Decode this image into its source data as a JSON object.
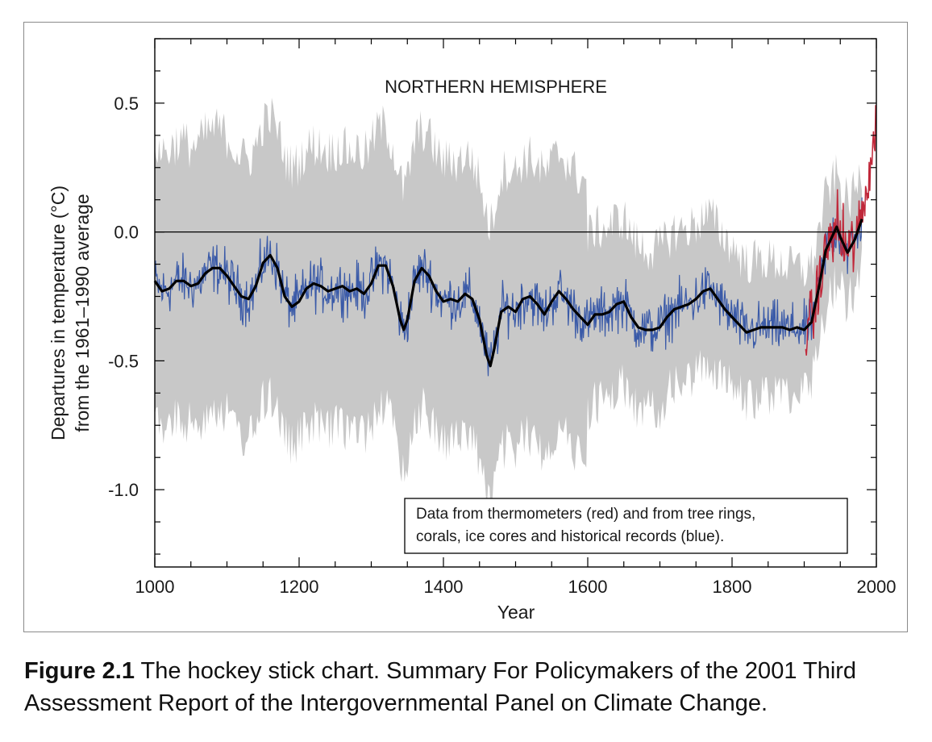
{
  "chart_data": {
    "type": "line",
    "title": "NORTHERN HEMISPHERE",
    "xlabel": "Year",
    "ylabel_line1": "Departures in temperature (°C)",
    "ylabel_line2": "from the 1961–1990 average",
    "xlim": [
      1000,
      2000
    ],
    "ylim": [
      -1.3,
      0.75
    ],
    "x_ticks": [
      1000,
      1200,
      1400,
      1600,
      1800,
      2000
    ],
    "y_ticks": [
      0.5,
      0.0,
      -0.5,
      -1.0
    ],
    "y_tick_labels": [
      "0.5",
      "0.0",
      "-0.5",
      "-1.0"
    ],
    "x_tick_labels": [
      "1000",
      "1200",
      "1400",
      "1600",
      "1800",
      "2000"
    ],
    "zero_line": 0.0,
    "note": [
      "Data from thermometers (red) and from tree rings,",
      "corals, ice cores and historical records (blue)."
    ],
    "colors": {
      "proxy": "#3a5aa8",
      "thermometer": "#c0283a",
      "smoothed": "#000000",
      "uncertainty": "#c8c8c8"
    },
    "series": [
      {
        "name": "smoothed",
        "style": "thick black",
        "x": [
          1000,
          1010,
          1020,
          1030,
          1040,
          1050,
          1060,
          1070,
          1080,
          1090,
          1100,
          1110,
          1120,
          1130,
          1140,
          1150,
          1160,
          1170,
          1180,
          1190,
          1200,
          1210,
          1220,
          1230,
          1240,
          1250,
          1260,
          1270,
          1280,
          1290,
          1300,
          1310,
          1320,
          1330,
          1340,
          1345,
          1350,
          1360,
          1370,
          1380,
          1390,
          1400,
          1410,
          1420,
          1430,
          1440,
          1450,
          1460,
          1465,
          1470,
          1480,
          1490,
          1500,
          1510,
          1520,
          1530,
          1540,
          1550,
          1560,
          1570,
          1580,
          1590,
          1600,
          1610,
          1620,
          1630,
          1640,
          1650,
          1660,
          1670,
          1680,
          1690,
          1700,
          1710,
          1720,
          1730,
          1740,
          1750,
          1760,
          1770,
          1780,
          1790,
          1800,
          1810,
          1820,
          1830,
          1840,
          1850,
          1860,
          1870,
          1880,
          1890,
          1900,
          1910,
          1920,
          1930,
          1940,
          1945,
          1950,
          1960,
          1970,
          1980
        ],
        "y": [
          -0.19,
          -0.23,
          -0.22,
          -0.19,
          -0.19,
          -0.21,
          -0.2,
          -0.16,
          -0.14,
          -0.14,
          -0.17,
          -0.21,
          -0.25,
          -0.26,
          -0.21,
          -0.12,
          -0.09,
          -0.14,
          -0.25,
          -0.29,
          -0.27,
          -0.22,
          -0.2,
          -0.21,
          -0.23,
          -0.22,
          -0.21,
          -0.23,
          -0.22,
          -0.24,
          -0.2,
          -0.13,
          -0.13,
          -0.21,
          -0.34,
          -0.38,
          -0.34,
          -0.19,
          -0.14,
          -0.17,
          -0.23,
          -0.27,
          -0.26,
          -0.27,
          -0.24,
          -0.26,
          -0.34,
          -0.48,
          -0.52,
          -0.46,
          -0.31,
          -0.29,
          -0.31,
          -0.26,
          -0.25,
          -0.28,
          -0.32,
          -0.27,
          -0.23,
          -0.26,
          -0.3,
          -0.33,
          -0.36,
          -0.32,
          -0.32,
          -0.31,
          -0.28,
          -0.27,
          -0.33,
          -0.37,
          -0.38,
          -0.38,
          -0.37,
          -0.33,
          -0.3,
          -0.29,
          -0.28,
          -0.26,
          -0.23,
          -0.22,
          -0.26,
          -0.3,
          -0.33,
          -0.36,
          -0.39,
          -0.38,
          -0.37,
          -0.37,
          -0.37,
          -0.37,
          -0.38,
          -0.37,
          -0.38,
          -0.35,
          -0.22,
          -0.07,
          -0.01,
          0.02,
          -0.02,
          -0.08,
          -0.03,
          0.05
        ]
      },
      {
        "name": "proxy",
        "style": "thin blue",
        "x": [
          1000,
          1980
        ],
        "y_note": "annual proxy reconstruction"
      },
      {
        "name": "thermometer",
        "style": "thin red",
        "x": [
          1902,
          1999
        ],
        "y_note": "instrumental record"
      }
    ]
  },
  "caption": {
    "label": "Figure 2.1",
    "text": " The hockey stick chart. Summary For Policymakers of the 2001 Third Assessment Report of the Intergovernmental Panel on Climate Change."
  }
}
